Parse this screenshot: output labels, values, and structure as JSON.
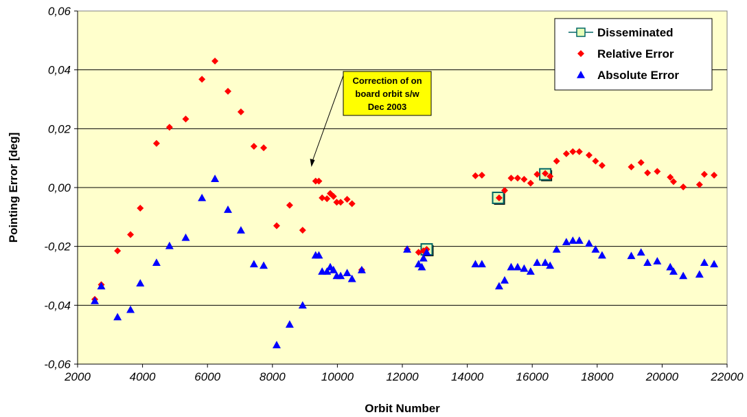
{
  "chart_data": {
    "type": "scatter",
    "title": "",
    "xlabel": "Orbit Number",
    "ylabel": "Pointing Error [deg]",
    "xlim": [
      2000,
      22000
    ],
    "ylim": [
      -0.06,
      0.06
    ],
    "x_ticks": [
      "2000",
      "4000",
      "6000",
      "8000",
      "10000",
      "12000",
      "14000",
      "16000",
      "18000",
      "20000",
      "22000"
    ],
    "y_ticks": [
      "-0,06",
      "-0,04",
      "-0,02",
      "0,00",
      "0,02",
      "0,04",
      "0,06"
    ],
    "grid": "horizontal",
    "legend_position": "top-right",
    "series": [
      {
        "name": "Disseminated",
        "marker": "square",
        "color": "#e6ffb8",
        "stroke": "#006666",
        "points": [
          [
            12750,
            -0.021
          ],
          [
            14950,
            -0.0035
          ],
          [
            16400,
            0.0045
          ]
        ]
      },
      {
        "name": "Relative Error",
        "marker": "diamond",
        "color": "#ff0000",
        "points": [
          [
            2530,
            -0.038
          ],
          [
            2730,
            -0.033
          ],
          [
            3230,
            -0.0215
          ],
          [
            3630,
            -0.016
          ],
          [
            3930,
            -0.007
          ],
          [
            4430,
            0.015
          ],
          [
            4830,
            0.0205
          ],
          [
            5330,
            0.0233
          ],
          [
            5830,
            0.0368
          ],
          [
            6230,
            0.043
          ],
          [
            6630,
            0.0327
          ],
          [
            7030,
            0.0257
          ],
          [
            7430,
            0.014
          ],
          [
            7730,
            0.0135
          ],
          [
            8130,
            -0.013
          ],
          [
            8530,
            -0.006
          ],
          [
            8930,
            -0.0145
          ],
          [
            9330,
            0.0022
          ],
          [
            9430,
            0.0022
          ],
          [
            9530,
            -0.0035
          ],
          [
            9680,
            -0.0038
          ],
          [
            9780,
            -0.002
          ],
          [
            9880,
            -0.003
          ],
          [
            9980,
            -0.005
          ],
          [
            10100,
            -0.005
          ],
          [
            10300,
            -0.004
          ],
          [
            10450,
            -0.0055
          ],
          [
            10750,
            -0.028
          ],
          [
            12150,
            -0.021
          ],
          [
            12500,
            -0.022
          ],
          [
            12650,
            -0.0215
          ],
          [
            12750,
            -0.021
          ],
          [
            14250,
            0.004
          ],
          [
            14450,
            0.0042
          ],
          [
            14980,
            -0.0035
          ],
          [
            15150,
            -0.001
          ],
          [
            15350,
            0.0032
          ],
          [
            15550,
            0.0032
          ],
          [
            15750,
            0.0028
          ],
          [
            15950,
            0.0015
          ],
          [
            16150,
            0.0045
          ],
          [
            16400,
            0.0048
          ],
          [
            16550,
            0.0038
          ],
          [
            16750,
            0.009
          ],
          [
            17050,
            0.0115
          ],
          [
            17250,
            0.0122
          ],
          [
            17450,
            0.0122
          ],
          [
            17750,
            0.011
          ],
          [
            17950,
            0.009
          ],
          [
            18150,
            0.0075
          ],
          [
            19050,
            0.007
          ],
          [
            19350,
            0.0085
          ],
          [
            19550,
            0.005
          ],
          [
            19850,
            0.0055
          ],
          [
            20250,
            0.0035
          ],
          [
            20350,
            0.002
          ],
          [
            20650,
            0.0002
          ],
          [
            21150,
            0.001
          ],
          [
            21300,
            0.0045
          ],
          [
            21600,
            0.0042
          ]
        ]
      },
      {
        "name": "Absolute Error",
        "marker": "triangle",
        "color": "#0000ff",
        "points": [
          [
            2530,
            -0.0385
          ],
          [
            2730,
            -0.0335
          ],
          [
            3230,
            -0.044
          ],
          [
            3630,
            -0.0415
          ],
          [
            3930,
            -0.0325
          ],
          [
            4430,
            -0.0255
          ],
          [
            4830,
            -0.0198
          ],
          [
            5330,
            -0.017
          ],
          [
            5830,
            -0.0035
          ],
          [
            6230,
            0.003
          ],
          [
            6630,
            -0.0075
          ],
          [
            7030,
            -0.0145
          ],
          [
            7430,
            -0.026
          ],
          [
            7730,
            -0.0265
          ],
          [
            8130,
            -0.0535
          ],
          [
            8530,
            -0.0465
          ],
          [
            8930,
            -0.04
          ],
          [
            9330,
            -0.023
          ],
          [
            9430,
            -0.023
          ],
          [
            9530,
            -0.0285
          ],
          [
            9680,
            -0.0285
          ],
          [
            9780,
            -0.027
          ],
          [
            9880,
            -0.028
          ],
          [
            9980,
            -0.03
          ],
          [
            10100,
            -0.03
          ],
          [
            10300,
            -0.029
          ],
          [
            10450,
            -0.031
          ],
          [
            10750,
            -0.028
          ],
          [
            12150,
            -0.021
          ],
          [
            12500,
            -0.026
          ],
          [
            12600,
            -0.027
          ],
          [
            12650,
            -0.024
          ],
          [
            12750,
            -0.022
          ],
          [
            14250,
            -0.026
          ],
          [
            14450,
            -0.026
          ],
          [
            14980,
            -0.0335
          ],
          [
            15150,
            -0.0315
          ],
          [
            15350,
            -0.027
          ],
          [
            15550,
            -0.027
          ],
          [
            15750,
            -0.0275
          ],
          [
            15950,
            -0.0285
          ],
          [
            16150,
            -0.0255
          ],
          [
            16400,
            -0.0255
          ],
          [
            16550,
            -0.0265
          ],
          [
            16750,
            -0.021
          ],
          [
            17050,
            -0.0185
          ],
          [
            17250,
            -0.018
          ],
          [
            17450,
            -0.018
          ],
          [
            17750,
            -0.019
          ],
          [
            17950,
            -0.021
          ],
          [
            18150,
            -0.023
          ],
          [
            19050,
            -0.0232
          ],
          [
            19350,
            -0.022
          ],
          [
            19550,
            -0.0255
          ],
          [
            19850,
            -0.025
          ],
          [
            20250,
            -0.027
          ],
          [
            20350,
            -0.0285
          ],
          [
            20650,
            -0.03
          ],
          [
            21150,
            -0.0295
          ],
          [
            21300,
            -0.0255
          ],
          [
            21600,
            -0.026
          ]
        ]
      }
    ],
    "annotations": [
      {
        "lines": [
          "Correction of on",
          "board orbit s/w",
          "Dec 2003"
        ],
        "background": "#ffff00",
        "arrow_to": [
          9200,
          0.007
        ]
      }
    ],
    "colors": {
      "plot_background": "#ffffcc",
      "grid": "#000000"
    }
  }
}
